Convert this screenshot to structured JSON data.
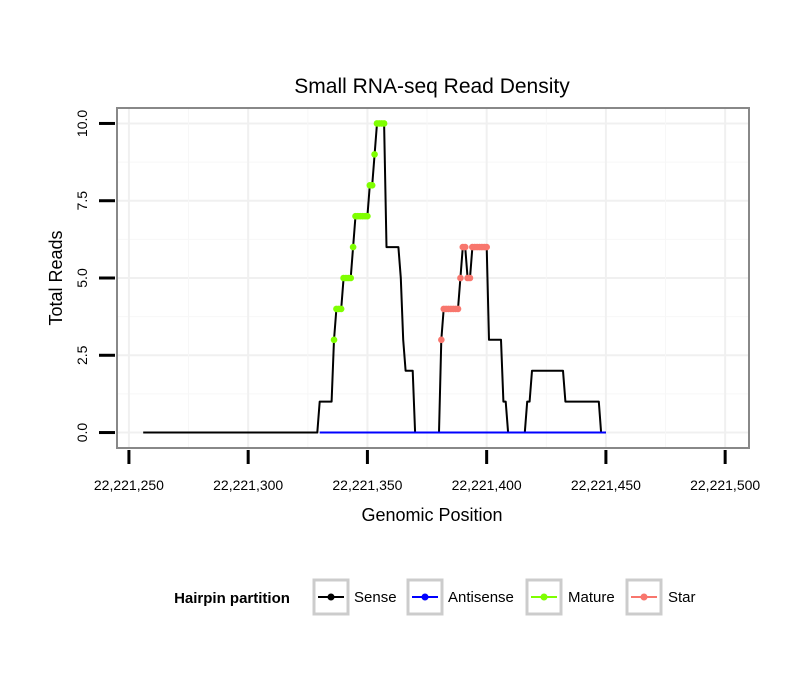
{
  "chart_data": {
    "type": "line",
    "title": "Small RNA-seq Read Density",
    "xlabel": "Genomic Position",
    "ylabel": "Total Reads",
    "xlim": [
      22221245,
      22221510
    ],
    "ylim": [
      -0.5,
      10.5
    ],
    "x_ticks": [
      22221250,
      22221300,
      22221350,
      22221400,
      22221450,
      22221500
    ],
    "x_tick_labels": [
      "22,221,250",
      "22,221,300",
      "22,221,350",
      "22,221,400",
      "22,221,450",
      "22,221,500"
    ],
    "y_ticks": [
      0,
      2.5,
      5,
      7.5,
      10
    ],
    "y_tick_labels": [
      "0.0",
      "2.5",
      "5.0",
      "7.5",
      "10.0"
    ],
    "grid": true,
    "series": [
      {
        "name": "Sense",
        "color": "#000000",
        "style": "line",
        "points": [
          [
            22221256,
            0
          ],
          [
            22221329,
            0
          ],
          [
            22221330,
            1
          ],
          [
            22221332,
            1
          ],
          [
            22221334,
            1
          ],
          [
            22221335,
            1
          ],
          [
            22221336,
            3
          ],
          [
            22221337,
            4
          ],
          [
            22221338,
            4
          ],
          [
            22221339,
            4
          ],
          [
            22221340,
            5
          ],
          [
            22221341,
            5
          ],
          [
            22221342,
            5
          ],
          [
            22221343,
            5
          ],
          [
            22221344,
            6
          ],
          [
            22221345,
            7
          ],
          [
            22221346,
            7
          ],
          [
            22221347,
            7
          ],
          [
            22221348,
            7
          ],
          [
            22221349,
            7
          ],
          [
            22221350,
            7
          ],
          [
            22221351,
            8
          ],
          [
            22221352,
            8
          ],
          [
            22221353,
            9
          ],
          [
            22221354,
            10
          ],
          [
            22221355,
            10
          ],
          [
            22221356,
            10
          ],
          [
            22221357,
            10
          ],
          [
            22221358,
            6
          ],
          [
            22221361,
            6
          ],
          [
            22221362,
            6
          ],
          [
            22221363,
            6
          ],
          [
            22221364,
            5
          ],
          [
            22221365,
            3
          ],
          [
            22221366,
            2
          ],
          [
            22221367,
            2
          ],
          [
            22221368,
            2
          ],
          [
            22221369,
            2
          ],
          [
            22221370,
            0
          ],
          [
            22221380,
            0
          ],
          [
            22221381,
            3
          ],
          [
            22221382,
            4
          ],
          [
            22221383,
            4
          ],
          [
            22221384,
            4
          ],
          [
            22221385,
            4
          ],
          [
            22221386,
            4
          ],
          [
            22221387,
            4
          ],
          [
            22221388,
            4
          ],
          [
            22221389,
            5
          ],
          [
            22221390,
            6
          ],
          [
            22221391,
            6
          ],
          [
            22221392,
            5
          ],
          [
            22221393,
            5
          ],
          [
            22221394,
            6
          ],
          [
            22221395,
            6
          ],
          [
            22221396,
            6
          ],
          [
            22221397,
            6
          ],
          [
            22221398,
            6
          ],
          [
            22221399,
            6
          ],
          [
            22221400,
            6
          ],
          [
            22221401,
            3
          ],
          [
            22221405,
            3
          ],
          [
            22221406,
            3
          ],
          [
            22221407,
            1
          ],
          [
            22221408,
            1
          ],
          [
            22221409,
            0
          ],
          [
            22221416,
            0
          ],
          [
            22221417,
            1
          ],
          [
            22221418,
            1
          ],
          [
            22221419,
            2
          ],
          [
            22221431,
            2
          ],
          [
            22221432,
            2
          ],
          [
            22221433,
            1
          ],
          [
            22221445,
            1
          ],
          [
            22221446,
            1
          ],
          [
            22221447,
            1
          ],
          [
            22221448,
            0
          ],
          [
            22221450,
            0
          ]
        ]
      },
      {
        "name": "Antisense",
        "color": "#0000ff",
        "style": "line",
        "points": [
          [
            22221330,
            0
          ],
          [
            22221450,
            0
          ]
        ]
      },
      {
        "name": "Mature",
        "color": "#7fff00",
        "style": "points",
        "points": [
          [
            22221336,
            3
          ],
          [
            22221337,
            4
          ],
          [
            22221338,
            4
          ],
          [
            22221339,
            4
          ],
          [
            22221340,
            5
          ],
          [
            22221341,
            5
          ],
          [
            22221342,
            5
          ],
          [
            22221343,
            5
          ],
          [
            22221344,
            6
          ],
          [
            22221345,
            7
          ],
          [
            22221346,
            7
          ],
          [
            22221347,
            7
          ],
          [
            22221348,
            7
          ],
          [
            22221349,
            7
          ],
          [
            22221350,
            7
          ],
          [
            22221351,
            8
          ],
          [
            22221352,
            8
          ],
          [
            22221353,
            9
          ],
          [
            22221354,
            10
          ],
          [
            22221355,
            10
          ],
          [
            22221356,
            10
          ],
          [
            22221357,
            10
          ]
        ]
      },
      {
        "name": "Star",
        "color": "#f8766d",
        "style": "points",
        "points": [
          [
            22221381,
            3
          ],
          [
            22221382,
            4
          ],
          [
            22221383,
            4
          ],
          [
            22221384,
            4
          ],
          [
            22221385,
            4
          ],
          [
            22221386,
            4
          ],
          [
            22221387,
            4
          ],
          [
            22221388,
            4
          ],
          [
            22221389,
            5
          ],
          [
            22221390,
            6
          ],
          [
            22221391,
            6
          ],
          [
            22221392,
            5
          ],
          [
            22221393,
            5
          ],
          [
            22221394,
            6
          ],
          [
            22221395,
            6
          ],
          [
            22221396,
            6
          ],
          [
            22221397,
            6
          ],
          [
            22221398,
            6
          ],
          [
            22221399,
            6
          ],
          [
            22221400,
            6
          ]
        ]
      }
    ],
    "legend": {
      "title": "Hairpin partition",
      "position": "bottom",
      "entries": [
        {
          "label": "Sense",
          "color": "#000000"
        },
        {
          "label": "Antisense",
          "color": "#0000ff"
        },
        {
          "label": "Mature",
          "color": "#7fff00"
        },
        {
          "label": "Star",
          "color": "#f8766d"
        }
      ]
    }
  }
}
